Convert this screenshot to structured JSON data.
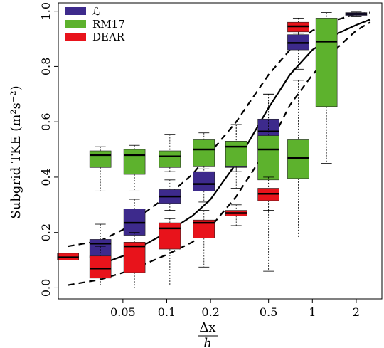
{
  "chart_data": {
    "type": "box",
    "ylabel": "Subgrid TKE (m²s⁻²)",
    "xlabel_numerator": "Δx",
    "xlabel_denominator": "h",
    "x_scale": "log",
    "xlim": [
      0.018,
      3.0
    ],
    "ylim": [
      -0.04,
      1.03
    ],
    "x_ticks": [
      0.05,
      0.1,
      0.2,
      0.5,
      1,
      2
    ],
    "x_tick_labels": [
      "0.05",
      "0.1",
      "0.2",
      "0.5",
      "1",
      "2"
    ],
    "y_ticks": [
      0.0,
      0.2,
      0.4,
      0.6,
      0.8,
      1.0
    ],
    "y_tick_labels": [
      "0.0",
      "0.2",
      "0.4",
      "0.6",
      "0.8",
      "1.0"
    ],
    "legend_position": "top-left",
    "legend": [
      {
        "label": "ℒ",
        "color": "#3d2a8c"
      },
      {
        "label": "RM17",
        "color": "#5db22d"
      },
      {
        "label": "DEAR",
        "color": "#e8131b"
      }
    ],
    "series": [
      {
        "name": "ℒ",
        "color": "#3d2a8c",
        "boxes": [
          {
            "x": 0.035,
            "whisker_low": 0.04,
            "q1": 0.11,
            "median": 0.16,
            "q3": 0.175,
            "whisker_high": 0.23
          },
          {
            "x": 0.06,
            "whisker_low": 0.13,
            "q1": 0.19,
            "median": 0.235,
            "q3": 0.285,
            "whisker_high": 0.32
          },
          {
            "x": 0.105,
            "whisker_low": 0.28,
            "q1": 0.305,
            "median": 0.33,
            "q3": 0.355,
            "whisker_high": 0.39
          },
          {
            "x": 0.18,
            "whisker_low": 0.31,
            "q1": 0.35,
            "median": 0.375,
            "q3": 0.42,
            "whisker_high": 0.46
          },
          {
            "x": 0.3,
            "whisker_low": 0.36,
            "q1": 0.435,
            "median": 0.47,
            "q3": 0.53,
            "whisker_high": 0.59
          },
          {
            "x": 0.5,
            "whisker_low": 0.4,
            "q1": 0.5,
            "median": 0.565,
            "q3": 0.61,
            "whisker_high": 0.7
          },
          {
            "x": 0.8,
            "whisker_low": 0.79,
            "q1": 0.86,
            "median": 0.885,
            "q3": 0.915,
            "whisker_high": 0.94
          },
          {
            "x": 2.0,
            "whisker_low": 0.98,
            "q1": 0.985,
            "median": 0.99,
            "q3": 0.995,
            "whisker_high": 0.997
          }
        ]
      },
      {
        "name": "RM17",
        "color": "#5db22d",
        "boxes": [
          {
            "x": 0.035,
            "whisker_low": 0.35,
            "q1": 0.435,
            "median": 0.48,
            "q3": 0.495,
            "whisker_high": 0.51
          },
          {
            "x": 0.06,
            "whisker_low": 0.35,
            "q1": 0.41,
            "median": 0.48,
            "q3": 0.5,
            "whisker_high": 0.515
          },
          {
            "x": 0.105,
            "whisker_low": 0.42,
            "q1": 0.435,
            "median": 0.475,
            "q3": 0.495,
            "whisker_high": 0.555
          },
          {
            "x": 0.18,
            "whisker_low": 0.43,
            "q1": 0.44,
            "median": 0.5,
            "q3": 0.535,
            "whisker_high": 0.56
          },
          {
            "x": 0.3,
            "whisker_low": 0.42,
            "q1": 0.44,
            "median": 0.51,
            "q3": 0.53,
            "whisker_high": 0.59
          },
          {
            "x": 0.5,
            "whisker_low": 0.06,
            "q1": 0.39,
            "median": 0.5,
            "q3": 0.55,
            "whisker_high": 0.7
          },
          {
            "x": 0.8,
            "whisker_low": 0.18,
            "q1": 0.395,
            "median": 0.47,
            "q3": 0.535,
            "whisker_high": 0.75
          },
          {
            "x": 1.25,
            "whisker_low": 0.45,
            "q1": 0.655,
            "median": 0.89,
            "q3": 0.975,
            "whisker_high": 0.995
          }
        ]
      },
      {
        "name": "DEAR",
        "color": "#e8131b",
        "boxes": [
          {
            "x": 0.021,
            "whisker_low": 0.1,
            "q1": 0.1,
            "median": 0.11,
            "q3": 0.125,
            "whisker_high": 0.125
          },
          {
            "x": 0.035,
            "whisker_low": 0.01,
            "q1": 0.035,
            "median": 0.07,
            "q3": 0.115,
            "whisker_high": 0.15
          },
          {
            "x": 0.06,
            "whisker_low": 0.0,
            "q1": 0.055,
            "median": 0.15,
            "q3": 0.165,
            "whisker_high": 0.2
          },
          {
            "x": 0.105,
            "whisker_low": 0.01,
            "q1": 0.14,
            "median": 0.215,
            "q3": 0.235,
            "whisker_high": 0.25
          },
          {
            "x": 0.18,
            "whisker_low": 0.075,
            "q1": 0.18,
            "median": 0.235,
            "q3": 0.245,
            "whisker_high": 0.28
          },
          {
            "x": 0.3,
            "whisker_low": 0.225,
            "q1": 0.26,
            "median": 0.27,
            "q3": 0.28,
            "whisker_high": 0.3
          },
          {
            "x": 0.5,
            "whisker_low": 0.28,
            "q1": 0.315,
            "median": 0.34,
            "q3": 0.36,
            "whisker_high": 0.4
          },
          {
            "x": 0.8,
            "whisker_low": 0.92,
            "q1": 0.925,
            "median": 0.945,
            "q3": 0.96,
            "whisker_high": 0.975
          }
        ]
      }
    ],
    "curves": [
      {
        "style": "solid",
        "x": [
          0.035,
          0.05,
          0.07,
          0.1,
          0.15,
          0.2,
          0.3,
          0.5,
          0.7,
          1.0,
          1.5,
          2.0,
          2.5
        ],
        "y": [
          0.085,
          0.115,
          0.155,
          0.2,
          0.26,
          0.32,
          0.45,
          0.65,
          0.77,
          0.86,
          0.92,
          0.95,
          0.97
        ]
      },
      {
        "style": "dashed",
        "x": [
          0.021,
          0.035,
          0.05,
          0.07,
          0.1,
          0.15,
          0.2,
          0.3,
          0.5,
          0.7,
          1.0,
          1.5,
          2.0,
          2.5
        ],
        "y": [
          0.15,
          0.17,
          0.21,
          0.27,
          0.33,
          0.41,
          0.49,
          0.6,
          0.77,
          0.86,
          0.93,
          0.97,
          0.99,
          0.995
        ]
      },
      {
        "style": "dashed",
        "x": [
          0.021,
          0.035,
          0.05,
          0.07,
          0.1,
          0.15,
          0.2,
          0.3,
          0.5,
          0.7,
          1.0,
          1.5,
          2.0,
          2.5
        ],
        "y": [
          0.01,
          0.03,
          0.055,
          0.085,
          0.12,
          0.165,
          0.22,
          0.33,
          0.51,
          0.66,
          0.77,
          0.87,
          0.93,
          0.96
        ]
      }
    ]
  }
}
